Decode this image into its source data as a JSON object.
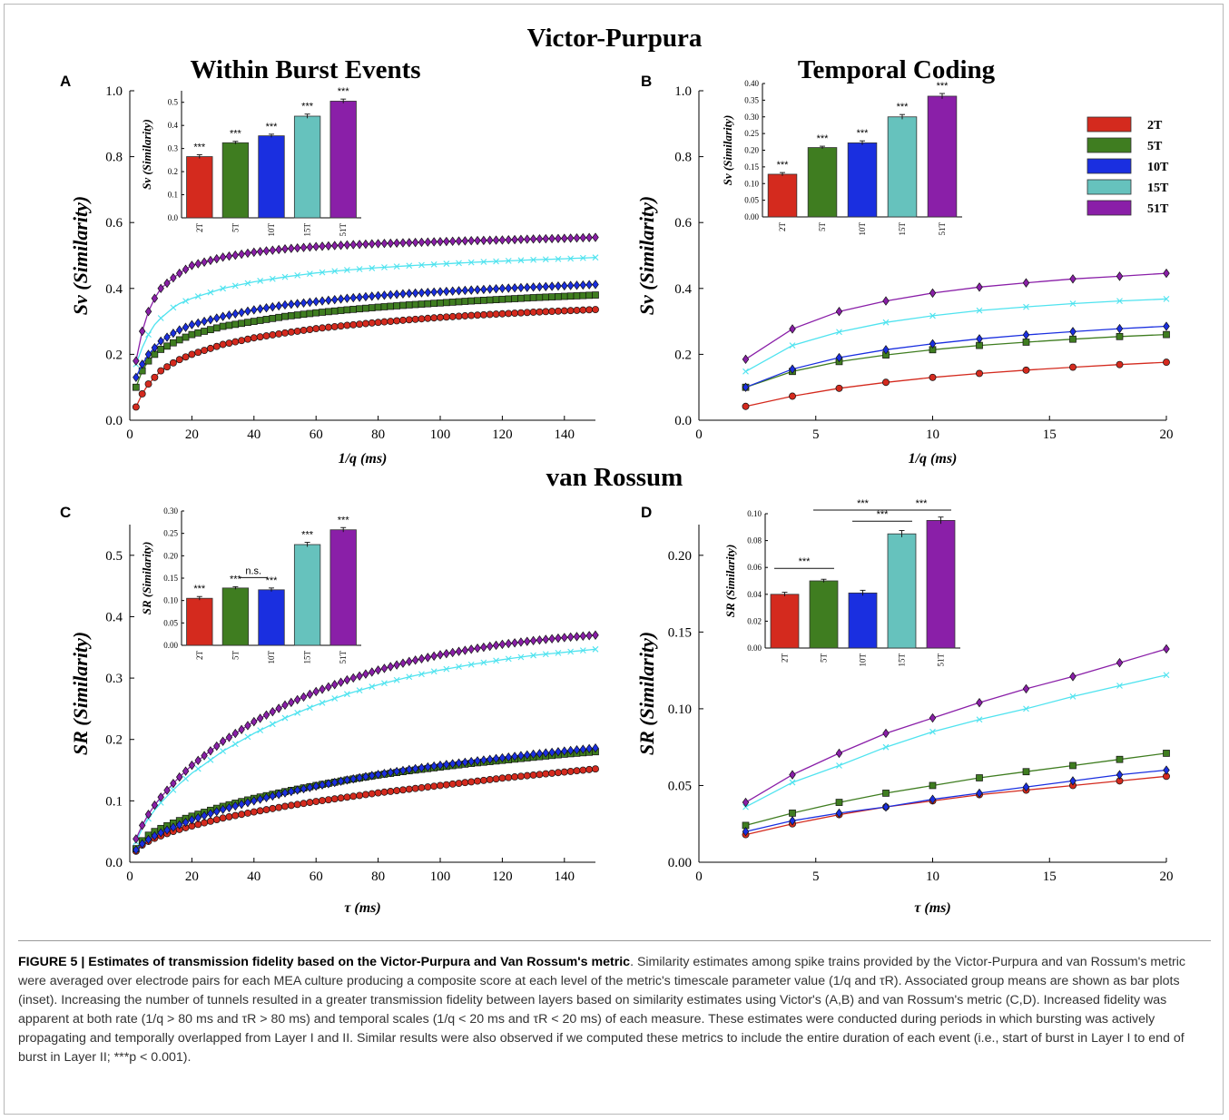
{
  "titles": {
    "victor": "Victor-Purpura",
    "vanrossum": "van Rossum"
  },
  "caption": {
    "label": "FIGURE 5 | Estimates of transmission fidelity based on the Victor-Purpura and Van Rossum's metric",
    "text": ". Similarity estimates among spike trains provided by the Victor-Purpura and van Rossum's metric were averaged over electrode pairs for each MEA culture producing a composite score at each level of the metric's timescale parameter value (1/q and τR). Associated group means are shown as bar plots (inset). Increasing the number of tunnels resulted in a greater transmission fidelity between layers based on similarity estimates using Victor's (A,B) and van Rossum's metric (C,D). Increased fidelity was apparent at both rate (1/q > 80 ms and τR > 80 ms) and temporal scales (1/q < 20 ms and τR < 20 ms) of each measure. These estimates were conducted during periods in which bursting was actively propagating and temporally overlapped from Layer I and II. Similar results were also observed if we computed these metrics to include the entire duration of each event (i.e., start of burst in Layer I to end of burst in Layer II; ***p < 0.001)."
  },
  "colors": {
    "2T": "#d42a1e",
    "5T": "#3f7d20",
    "10T": "#1a2fe0",
    "15T": "#66c2bd",
    "51T": "#8a1fa8",
    "line2T": "#d42a1e",
    "line5T": "#3f7d20",
    "line10T": "#1a2fe0",
    "line15T": "#4fe3ef",
    "line51T": "#8a1fa8"
  },
  "legend": [
    "2T",
    "5T",
    "10T",
    "15T",
    "51T"
  ],
  "chart_data": [
    {
      "panel": "A",
      "type": "line",
      "title": "Within Burst Events",
      "xlabel": "1/q (ms)",
      "ylabel": "Sv (Similarity)",
      "xlim": [
        0,
        150
      ],
      "ylim": [
        0,
        1.0
      ],
      "xticks": [
        0,
        20,
        40,
        60,
        80,
        100,
        120,
        140
      ],
      "yticks": [
        0.0,
        0.2,
        0.4,
        0.6,
        0.8,
        1.0
      ],
      "xtick_labels": [
        "0",
        "20",
        "40",
        "60",
        "80",
        "100",
        "120",
        "140"
      ],
      "ytick_labels": [
        "0.0",
        "0.2",
        "0.4",
        "0.6",
        "0.8",
        "1.0"
      ],
      "x": [
        2,
        4,
        6,
        8,
        10,
        15,
        20,
        30,
        40,
        50,
        60,
        70,
        80,
        90,
        100,
        110,
        120,
        130,
        140,
        150
      ],
      "series": [
        {
          "name": "2T",
          "values": [
            0.04,
            0.08,
            0.11,
            0.13,
            0.15,
            0.18,
            0.2,
            0.23,
            0.25,
            0.265,
            0.278,
            0.288,
            0.297,
            0.305,
            0.312,
            0.318,
            0.323,
            0.328,
            0.332,
            0.336
          ]
        },
        {
          "name": "5T",
          "values": [
            0.1,
            0.15,
            0.18,
            0.2,
            0.215,
            0.24,
            0.26,
            0.285,
            0.3,
            0.315,
            0.326,
            0.335,
            0.343,
            0.35,
            0.356,
            0.362,
            0.367,
            0.372,
            0.376,
            0.38
          ]
        },
        {
          "name": "10T",
          "values": [
            0.13,
            0.17,
            0.2,
            0.22,
            0.24,
            0.27,
            0.29,
            0.315,
            0.335,
            0.35,
            0.36,
            0.37,
            0.378,
            0.385,
            0.39,
            0.395,
            0.4,
            0.404,
            0.408,
            0.412
          ]
        },
        {
          "name": "15T",
          "values": [
            0.17,
            0.22,
            0.26,
            0.29,
            0.31,
            0.35,
            0.37,
            0.4,
            0.42,
            0.435,
            0.447,
            0.456,
            0.463,
            0.469,
            0.474,
            0.479,
            0.483,
            0.487,
            0.49,
            0.494
          ]
        },
        {
          "name": "51T",
          "values": [
            0.18,
            0.27,
            0.33,
            0.37,
            0.4,
            0.44,
            0.47,
            0.495,
            0.51,
            0.52,
            0.527,
            0.532,
            0.536,
            0.539,
            0.542,
            0.545,
            0.547,
            0.55,
            0.552,
            0.555
          ]
        }
      ],
      "inset": {
        "type": "bar",
        "ylabel": "Sv (Similarity)",
        "ylim": [
          0,
          0.55
        ],
        "yticks": [
          0.0,
          0.1,
          0.2,
          0.3,
          0.4,
          0.5
        ],
        "ytick_labels": [
          "0.0",
          "0.1",
          "0.2",
          "0.3",
          "0.4",
          "0.5"
        ],
        "categories": [
          "2T",
          "5T",
          "10T",
          "15T",
          "51T"
        ],
        "values": [
          0.265,
          0.325,
          0.355,
          0.44,
          0.505
        ],
        "errors": [
          0.008,
          0.006,
          0.007,
          0.009,
          0.009
        ],
        "annotations": [
          "***",
          "***",
          "***",
          "***",
          "***"
        ],
        "comparisons": []
      }
    },
    {
      "panel": "B",
      "type": "line",
      "title": "Temporal Coding",
      "xlabel": "1/q (ms)",
      "ylabel": "Sv (Similarity)",
      "xlim": [
        0,
        20
      ],
      "ylim": [
        0,
        1.0
      ],
      "xticks": [
        0,
        5,
        10,
        15,
        20
      ],
      "yticks": [
        0.0,
        0.2,
        0.4,
        0.6,
        0.8,
        1.0
      ],
      "xtick_labels": [
        "0",
        "5",
        "10",
        "15",
        "20"
      ],
      "ytick_labels": [
        "0.0",
        "0.2",
        "0.4",
        "0.6",
        "0.8",
        "1.0"
      ],
      "x": [
        2,
        4,
        6,
        8,
        10,
        12,
        14,
        16,
        18,
        20
      ],
      "series": [
        {
          "name": "2T",
          "values": [
            0.042,
            0.073,
            0.097,
            0.115,
            0.13,
            0.142,
            0.152,
            0.161,
            0.169,
            0.176
          ]
        },
        {
          "name": "5T",
          "values": [
            0.1,
            0.148,
            0.178,
            0.198,
            0.214,
            0.227,
            0.237,
            0.246,
            0.254,
            0.26
          ]
        },
        {
          "name": "10T",
          "values": [
            0.1,
            0.155,
            0.19,
            0.214,
            0.232,
            0.247,
            0.259,
            0.269,
            0.278,
            0.285
          ]
        },
        {
          "name": "15T",
          "values": [
            0.148,
            0.227,
            0.268,
            0.297,
            0.317,
            0.333,
            0.344,
            0.354,
            0.362,
            0.368
          ]
        },
        {
          "name": "51T",
          "values": [
            0.185,
            0.277,
            0.33,
            0.362,
            0.386,
            0.404,
            0.417,
            0.429,
            0.437,
            0.446
          ]
        }
      ],
      "inset": {
        "type": "bar",
        "ylabel": "Sv (Similarity)",
        "ylim": [
          0,
          0.4
        ],
        "yticks": [
          0.0,
          0.05,
          0.1,
          0.15,
          0.2,
          0.25,
          0.3,
          0.35,
          0.4
        ],
        "ytick_labels": [
          "0.00",
          "0.05",
          "0.10",
          "0.15",
          "0.20",
          "0.25",
          "0.30",
          "0.35",
          "0.40"
        ],
        "categories": [
          "2T",
          "5T",
          "10T",
          "15T",
          "51T"
        ],
        "values": [
          0.128,
          0.208,
          0.222,
          0.3,
          0.362
        ],
        "errors": [
          0.005,
          0.004,
          0.006,
          0.007,
          0.008
        ],
        "annotations": [
          "***",
          "***",
          "***",
          "***",
          "***"
        ],
        "comparisons": []
      }
    },
    {
      "panel": "C",
      "type": "line",
      "xlabel": "τ (ms)",
      "ylabel": "SR (Similarity)",
      "xlim": [
        0,
        150
      ],
      "ylim": [
        0,
        0.55
      ],
      "xticks": [
        0,
        20,
        40,
        60,
        80,
        100,
        120,
        140
      ],
      "yticks": [
        0.0,
        0.1,
        0.2,
        0.3,
        0.4,
        0.5
      ],
      "xtick_labels": [
        "0",
        "20",
        "40",
        "60",
        "80",
        "100",
        "120",
        "140"
      ],
      "ytick_labels": [
        "0.0",
        "0.1",
        "0.2",
        "0.3",
        "0.4",
        "0.5"
      ],
      "x": [
        2,
        4,
        6,
        8,
        10,
        15,
        20,
        30,
        40,
        50,
        60,
        70,
        80,
        90,
        100,
        110,
        120,
        130,
        140,
        150
      ],
      "series": [
        {
          "name": "2T",
          "values": [
            0.018,
            0.028,
            0.034,
            0.039,
            0.043,
            0.052,
            0.059,
            0.072,
            0.082,
            0.091,
            0.099,
            0.106,
            0.113,
            0.119,
            0.125,
            0.131,
            0.137,
            0.142,
            0.147,
            0.152
          ]
        },
        {
          "name": "5T",
          "values": [
            0.022,
            0.035,
            0.044,
            0.05,
            0.055,
            0.066,
            0.075,
            0.091,
            0.104,
            0.115,
            0.125,
            0.134,
            0.142,
            0.149,
            0.155,
            0.161,
            0.166,
            0.171,
            0.176,
            0.18
          ]
        },
        {
          "name": "10T",
          "values": [
            0.02,
            0.03,
            0.037,
            0.043,
            0.048,
            0.059,
            0.069,
            0.086,
            0.1,
            0.113,
            0.124,
            0.134,
            0.143,
            0.151,
            0.158,
            0.164,
            0.17,
            0.176,
            0.181,
            0.186
          ]
        },
        {
          "name": "15T",
          "values": [
            0.033,
            0.055,
            0.071,
            0.085,
            0.097,
            0.123,
            0.145,
            0.181,
            0.21,
            0.235,
            0.256,
            0.274,
            0.289,
            0.302,
            0.313,
            0.322,
            0.33,
            0.337,
            0.342,
            0.347
          ]
        },
        {
          "name": "51T",
          "values": [
            0.038,
            0.06,
            0.078,
            0.093,
            0.106,
            0.134,
            0.158,
            0.197,
            0.229,
            0.256,
            0.278,
            0.297,
            0.313,
            0.327,
            0.338,
            0.347,
            0.355,
            0.361,
            0.366,
            0.37
          ]
        }
      ],
      "inset": {
        "type": "bar",
        "ylabel": "SR (Similarity)",
        "ylim": [
          0,
          0.3
        ],
        "yticks": [
          0.0,
          0.05,
          0.1,
          0.15,
          0.2,
          0.25,
          0.3
        ],
        "ytick_labels": [
          "0.00",
          "0.05",
          "0.10",
          "0.15",
          "0.20",
          "0.25",
          "0.30"
        ],
        "categories": [
          "2T",
          "5T",
          "10T",
          "15T",
          "51T"
        ],
        "values": [
          0.105,
          0.128,
          0.124,
          0.225,
          0.258
        ],
        "errors": [
          0.004,
          0.003,
          0.004,
          0.005,
          0.005
        ],
        "annotations": [
          "***",
          "***",
          "***",
          "***",
          "***"
        ],
        "comparisons": [
          {
            "from": 1,
            "to": 2,
            "label": "n.s."
          }
        ]
      }
    },
    {
      "panel": "D",
      "type": "line",
      "xlabel": "τ (ms)",
      "ylabel": "SR (Similarity)",
      "xlim": [
        0,
        20
      ],
      "ylim": [
        0,
        0.22
      ],
      "xticks": [
        0,
        5,
        10,
        15,
        20
      ],
      "yticks": [
        0.0,
        0.05,
        0.1,
        0.15,
        0.2
      ],
      "xtick_labels": [
        "0",
        "5",
        "10",
        "15",
        "20"
      ],
      "ytick_labels": [
        "0.00",
        "0.05",
        "0.10",
        "0.15",
        "0.20"
      ],
      "x": [
        2,
        4,
        6,
        8,
        10,
        12,
        14,
        16,
        18,
        20
      ],
      "series": [
        {
          "name": "2T",
          "values": [
            0.018,
            0.025,
            0.031,
            0.036,
            0.04,
            0.044,
            0.047,
            0.05,
            0.053,
            0.056
          ]
        },
        {
          "name": "5T",
          "values": [
            0.024,
            0.032,
            0.039,
            0.045,
            0.05,
            0.055,
            0.059,
            0.063,
            0.067,
            0.071
          ]
        },
        {
          "name": "10T",
          "values": [
            0.02,
            0.027,
            0.032,
            0.036,
            0.041,
            0.045,
            0.049,
            0.053,
            0.057,
            0.06
          ]
        },
        {
          "name": "15T",
          "values": [
            0.036,
            0.052,
            0.063,
            0.075,
            0.085,
            0.093,
            0.1,
            0.108,
            0.115,
            0.122
          ]
        },
        {
          "name": "51T",
          "values": [
            0.039,
            0.057,
            0.071,
            0.084,
            0.094,
            0.104,
            0.113,
            0.121,
            0.13,
            0.139
          ]
        }
      ],
      "inset": {
        "type": "bar",
        "ylabel": "SR (Similarity)",
        "ylim": [
          0,
          0.1
        ],
        "yticks": [
          0.0,
          0.02,
          0.04,
          0.06,
          0.08,
          0.1
        ],
        "ytick_labels": [
          "0.00",
          "0.02",
          "0.04",
          "0.06",
          "0.08",
          "0.10"
        ],
        "categories": [
          "2T",
          "5T",
          "10T",
          "15T",
          "51T"
        ],
        "values": [
          0.04,
          0.05,
          0.041,
          0.085,
          0.095
        ],
        "errors": [
          0.0015,
          0.0012,
          0.002,
          0.0025,
          0.0025
        ],
        "annotations": [
          "",
          "",
          "",
          "",
          ""
        ],
        "comparisons": [
          {
            "from": 0,
            "to": 1,
            "label": "***"
          },
          {
            "from": 1,
            "to": 3,
            "label": "***"
          },
          {
            "from": 2,
            "to": 3,
            "label": "***"
          },
          {
            "from": 3,
            "to": 4,
            "label": "***"
          }
        ]
      }
    }
  ]
}
